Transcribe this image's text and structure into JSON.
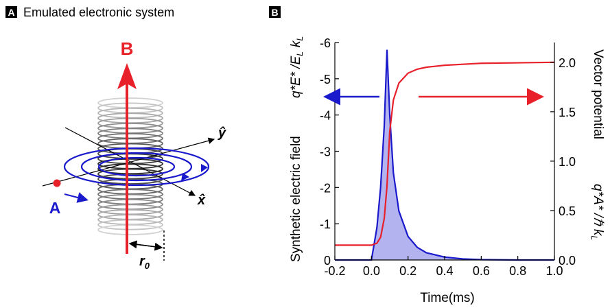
{
  "panel_a": {
    "letter": "A",
    "title": "Emulated electronic system",
    "label_B": "B",
    "label_A": "A",
    "label_y": "ŷ",
    "label_x": "x̂",
    "label_r": "r",
    "label_r_sub": "0",
    "colors": {
      "field": "#e8202a",
      "loops": "#1a1acc",
      "coil": "#333333"
    }
  },
  "panel_b": {
    "letter": "B",
    "xlabel": "Time(ms)",
    "left_label": "Synthetic electric field",
    "left_unit": "q*E* /E",
    "left_unit_sub": "L",
    "left_unit_tail": "k",
    "left_unit_tail_sub": "L",
    "right_label": "Vector potential",
    "right_unit": "q*A* /ℏ k",
    "right_unit_sub": "L"
  },
  "chart_data": {
    "type": "line",
    "x": [
      -0.2,
      0.0,
      0.03,
      0.05,
      0.07,
      0.085,
      0.1,
      0.12,
      0.15,
      0.2,
      0.25,
      0.3,
      0.4,
      0.5,
      0.6,
      0.8,
      1.0
    ],
    "xlim": [
      -0.2,
      1.0
    ],
    "xticks": [
      "-0.2",
      "0.0",
      "0.2",
      "0.4",
      "0.6",
      "0.8",
      "1.0"
    ],
    "left_axis": {
      "ylim": [
        0,
        -6
      ],
      "ticks": [
        "0",
        "-1",
        "-2",
        "-3",
        "-4",
        "-5",
        "-6"
      ]
    },
    "right_axis": {
      "ylim": [
        0,
        2.2
      ],
      "ticks": [
        "0.0",
        "0.5",
        "1.0",
        "1.5",
        "2.0"
      ]
    },
    "series": [
      {
        "axis": "left",
        "color": "#1a1acc",
        "fill": "#b3b3f0",
        "values": [
          0,
          0,
          -0.9,
          -2.0,
          -3.7,
          -5.8,
          -4.0,
          -2.4,
          -1.35,
          -0.65,
          -0.35,
          -0.2,
          -0.08,
          -0.03,
          -0.01,
          0,
          0
        ]
      },
      {
        "axis": "right",
        "color": "#e8202a",
        "values": [
          0.15,
          0.15,
          0.17,
          0.23,
          0.42,
          0.75,
          1.3,
          1.62,
          1.79,
          1.89,
          1.93,
          1.95,
          1.97,
          1.98,
          1.99,
          1.995,
          2.0
        ]
      }
    ]
  }
}
